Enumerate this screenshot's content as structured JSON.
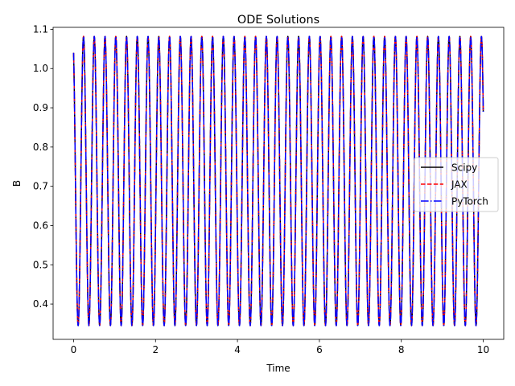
{
  "chart_data": {
    "type": "line",
    "title": "ODE Solutions",
    "xlabel": "Time",
    "ylabel": "B",
    "xlim": [
      -0.5,
      10.5
    ],
    "ylim": [
      0.31,
      1.105
    ],
    "xticks": [
      "0",
      "2",
      "4",
      "6",
      "8",
      "10"
    ],
    "yticks": [
      "0.4",
      "0.5",
      "0.6",
      "0.7",
      "0.8",
      "0.9",
      "1.0",
      "1.1"
    ],
    "grid": false,
    "legend_position": "center-right",
    "x_range": [
      0,
      10
    ],
    "oscillation": {
      "min": 0.345,
      "max": 1.082,
      "start": 1.04,
      "end": 0.89,
      "peaks": 39
    },
    "series": [
      {
        "name": "Scipy",
        "color": "#000000",
        "style": "solid"
      },
      {
        "name": "JAX",
        "color": "#ff0000",
        "style": "dashed"
      },
      {
        "name": "PyTorch",
        "color": "#0000ff",
        "style": "dashdot"
      }
    ]
  }
}
